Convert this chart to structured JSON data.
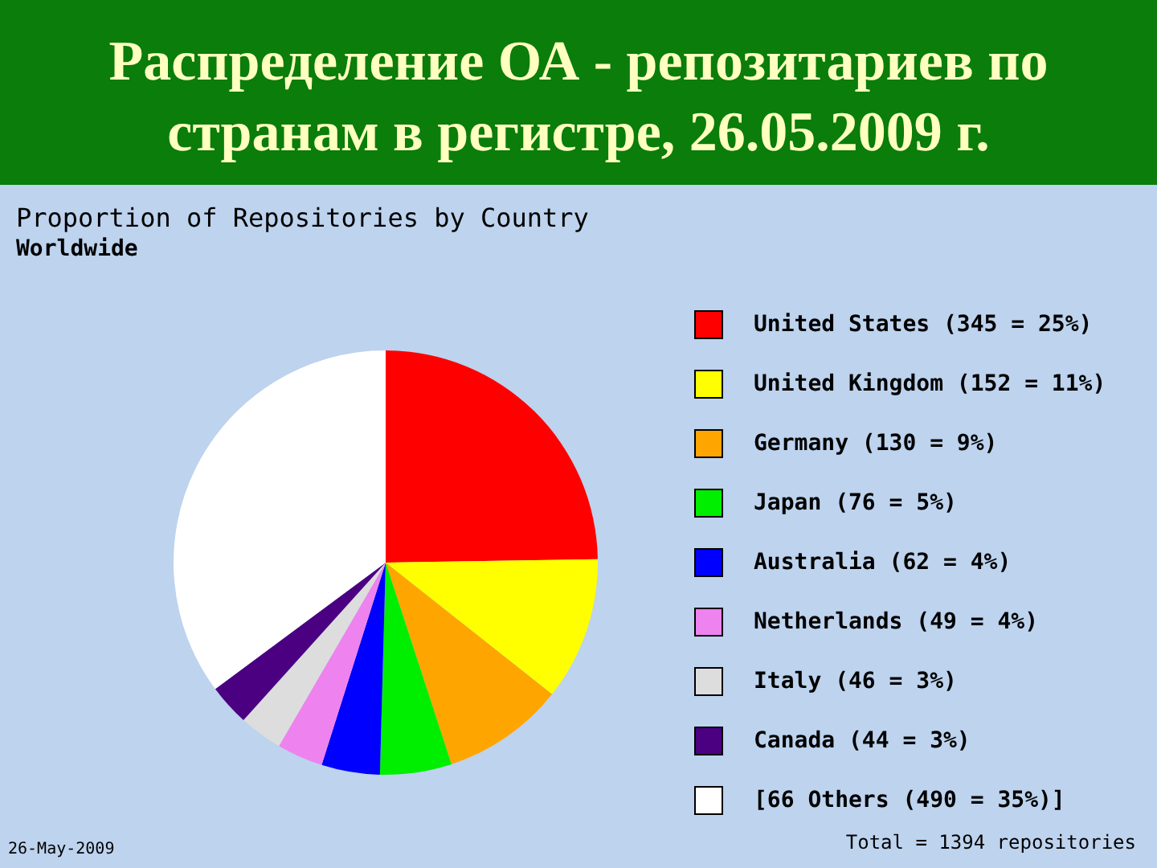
{
  "chart_data": {
    "type": "pie",
    "title": [
      "Распределение ОА - репозитариев по",
      "странам в регистре, 26.05.2009 г."
    ],
    "subtitle": [
      "Proportion of Repositories by Country",
      "Worldwide"
    ],
    "annotations": [
      "26-May-2009",
      "Total = 1394 repositories"
    ],
    "categories": [
      "United States (345 = 25%)",
      "United Kingdom (152 = 11%)",
      "Germany (130 = 9%)",
      "Japan (76 = 5%)",
      "Australia (62 = 4%)",
      "Netherlands (49 = 4%)",
      "Italy (46 = 3%)",
      "Canada (44 = 3%)",
      "[66 Others (490 = 35%)]"
    ],
    "values": [
      345,
      152,
      130,
      76,
      62,
      49,
      46,
      44,
      490
    ],
    "colors": [
      "#ff0000",
      "#ffff00",
      "#ffa500",
      "#00ee00",
      "#0000ff",
      "#ee82ee",
      "#dddddd",
      "#4b0082",
      "#ffffff"
    ],
    "legend": "right"
  }
}
